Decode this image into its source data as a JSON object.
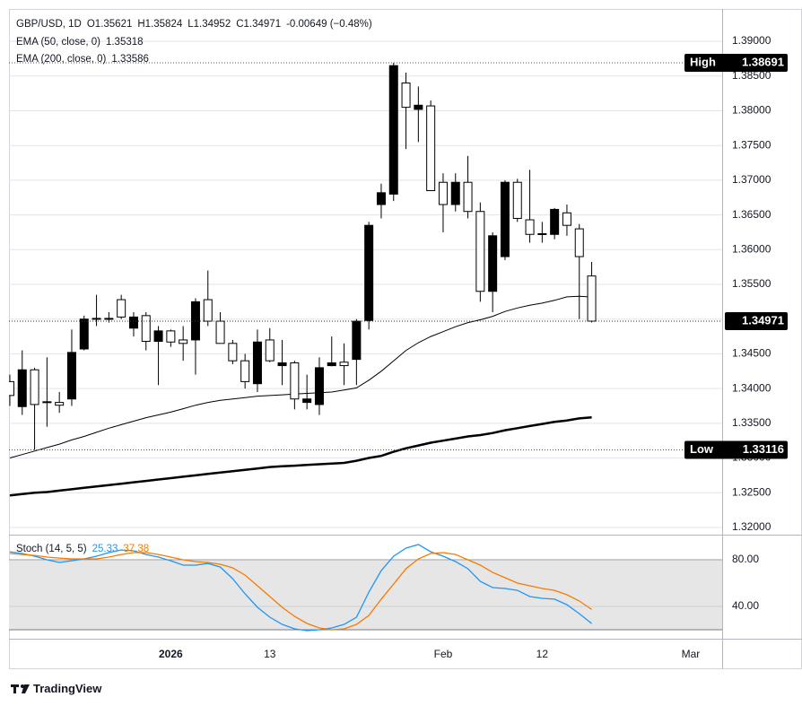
{
  "chart_data": [
    {
      "type": "candlestick",
      "title": "GBP/USD, 1D",
      "ohlc_labels": [
        "O1.35621",
        "H1.35824",
        "L1.34952",
        "C1.34971",
        "-0.00649 (−0.48%)"
      ],
      "open": [
        1.341,
        1.3374,
        1.3427,
        1.3381,
        1.338,
        1.3385,
        1.3457,
        1.35,
        1.35,
        1.3528,
        1.3487,
        1.3505,
        1.3468,
        1.3483,
        1.347,
        1.347,
        1.3528,
        1.3497,
        1.3465,
        1.344,
        1.3407,
        1.347,
        1.3433,
        1.3437,
        1.338,
        1.3377,
        1.3433,
        1.3438,
        1.3442,
        1.3498,
        1.3665,
        1.368,
        1.384,
        1.3802,
        1.3807,
        1.3697,
        1.3665,
        1.3697,
        1.3655,
        1.354,
        1.359,
        1.3697,
        1.3643,
        1.3623,
        1.3622,
        1.3653,
        1.363,
        1.35621
      ],
      "high": [
        1.342,
        1.3455,
        1.343,
        1.3445,
        1.3395,
        1.3485,
        1.3505,
        1.3535,
        1.351,
        1.3535,
        1.351,
        1.351,
        1.349,
        1.3485,
        1.349,
        1.353,
        1.357,
        1.351,
        1.347,
        1.345,
        1.3485,
        1.3487,
        1.347,
        1.344,
        1.342,
        1.3445,
        1.3475,
        1.3465,
        1.35,
        1.364,
        1.3695,
        1.38691,
        1.3855,
        1.3835,
        1.3815,
        1.371,
        1.371,
        1.3735,
        1.3668,
        1.3625,
        1.37,
        1.3702,
        1.3715,
        1.364,
        1.366,
        1.3665,
        1.3637,
        1.35824
      ],
      "low": [
        1.3375,
        1.3362,
        1.33116,
        1.3345,
        1.3365,
        1.3375,
        1.3455,
        1.349,
        1.3495,
        1.35,
        1.3475,
        1.3455,
        1.3405,
        1.346,
        1.344,
        1.342,
        1.349,
        1.3465,
        1.3435,
        1.34,
        1.3395,
        1.3438,
        1.3405,
        1.337,
        1.337,
        1.3362,
        1.3432,
        1.3405,
        1.3405,
        1.3485,
        1.3645,
        1.367,
        1.3745,
        1.3755,
        1.3685,
        1.3625,
        1.3655,
        1.3645,
        1.3525,
        1.351,
        1.3585,
        1.364,
        1.361,
        1.361,
        1.3615,
        1.362,
        1.35,
        1.34952
      ],
      "close": [
        1.339,
        1.3427,
        1.3377,
        1.338,
        1.3376,
        1.3452,
        1.35,
        1.3501,
        1.3501,
        1.3503,
        1.3503,
        1.3468,
        1.3483,
        1.3467,
        1.3465,
        1.3525,
        1.3497,
        1.3465,
        1.344,
        1.341,
        1.3467,
        1.344,
        1.3437,
        1.3385,
        1.3385,
        1.343,
        1.3437,
        1.3433,
        1.3497,
        1.3635,
        1.3682,
        1.3865,
        1.3805,
        1.3808,
        1.3685,
        1.3665,
        1.3697,
        1.3655,
        1.354,
        1.362,
        1.3697,
        1.3645,
        1.3622,
        1.3622,
        1.3658,
        1.3635,
        1.359,
        1.34971
      ],
      "up_color": "#000000",
      "down_color": "#ffffff",
      "series": [
        {
          "name": "EMA (50, close, 0)",
          "value_label": "1.35318",
          "color": "#000000",
          "values": [
            1.33,
            1.3305,
            1.331,
            1.3315,
            1.332,
            1.3326,
            1.3331,
            1.3337,
            1.3343,
            1.3348,
            1.3353,
            1.3358,
            1.3362,
            1.3366,
            1.3371,
            1.3376,
            1.338,
            1.3383,
            1.3385,
            1.3387,
            1.3389,
            1.339,
            1.3391,
            1.3392,
            1.3393,
            1.3394,
            1.3395,
            1.3398,
            1.3401,
            1.3412,
            1.3425,
            1.344,
            1.3455,
            1.3466,
            1.3475,
            1.3482,
            1.3489,
            1.3495,
            1.3499,
            1.3504,
            1.3511,
            1.3516,
            1.352,
            1.3523,
            1.3527,
            1.3532,
            1.3533,
            1.35318
          ]
        },
        {
          "name": "EMA (200, close, 0)",
          "value_label": "1.33586",
          "color": "#000000",
          "values": [
            1.3246,
            1.3248,
            1.325,
            1.3251,
            1.3253,
            1.3255,
            1.3257,
            1.3259,
            1.3261,
            1.3263,
            1.3265,
            1.3267,
            1.3269,
            1.3271,
            1.3273,
            1.3275,
            1.3277,
            1.3279,
            1.3281,
            1.3283,
            1.3285,
            1.3287,
            1.3288,
            1.3289,
            1.329,
            1.3291,
            1.3292,
            1.3293,
            1.3296,
            1.33,
            1.3303,
            1.3309,
            1.3314,
            1.3318,
            1.3322,
            1.3325,
            1.3328,
            1.3331,
            1.3333,
            1.3336,
            1.334,
            1.3343,
            1.3346,
            1.3349,
            1.3352,
            1.3354,
            1.3357,
            1.33586
          ]
        }
      ],
      "markers": [
        {
          "label": "High",
          "value": 1.38691,
          "value_label": "1.38691"
        },
        {
          "label": "Low",
          "value": 1.33116,
          "value_label": "1.33116"
        }
      ],
      "last_price_label": "1.34971",
      "ylim": [
        1.31896,
        1.39466
      ],
      "yticks": [
        {
          "value": 1.32,
          "label": "1.32000"
        },
        {
          "value": 1.325,
          "label": "1.32500"
        },
        {
          "value": 1.33,
          "label": "1.33000"
        },
        {
          "value": 1.335,
          "label": "1.33500"
        },
        {
          "value": 1.34,
          "label": "1.34000"
        },
        {
          "value": 1.345,
          "label": "1.34500"
        },
        {
          "value": 1.35,
          "label": "1.35000"
        },
        {
          "value": 1.355,
          "label": "1.35500"
        },
        {
          "value": 1.36,
          "label": "1.36000"
        },
        {
          "value": 1.365,
          "label": "1.36500"
        },
        {
          "value": 1.37,
          "label": "1.37000"
        },
        {
          "value": 1.375,
          "label": "1.37500"
        },
        {
          "value": 1.38,
          "label": "1.38000"
        },
        {
          "value": 1.385,
          "label": "1.38500"
        },
        {
          "value": 1.39,
          "label": "1.39000"
        }
      ],
      "xlim": [
        -0.07,
        57.54
      ],
      "xticks": [
        {
          "value": 13,
          "label": "2026"
        },
        {
          "value": 21,
          "label": "13"
        },
        {
          "value": 35,
          "label": "Feb"
        },
        {
          "value": 43,
          "label": "12"
        },
        {
          "value": 55,
          "label": "Mar"
        }
      ],
      "grid": true
    },
    {
      "type": "line",
      "title": "Stoch (14, 5, 5)",
      "series": [
        {
          "value_label": "25.33",
          "color": "#2196f3",
          "values": [
            86.9,
            85.4,
            83.1,
            80.0,
            77.7,
            79.2,
            80.8,
            83.1,
            86.2,
            88.5,
            87.7,
            84.6,
            82.3,
            79.2,
            75.4,
            75.4,
            76.9,
            73.8,
            63.8,
            50.8,
            39.2,
            30.8,
            24.6,
            20.8,
            19.2,
            20.0,
            21.5,
            24.6,
            30.8,
            52.3,
            70.8,
            83.1,
            90.0,
            93.1,
            86.9,
            83.1,
            78.5,
            72.3,
            61.5,
            56.2,
            55.4,
            53.8,
            48.5,
            46.9,
            46.2,
            41.5,
            33.8,
            25.33
          ]
        },
        {
          "value_label": "37.38",
          "color": "#f57c00",
          "values": [
            85.4,
            84.6,
            83.8,
            82.3,
            81.5,
            80.8,
            80.8,
            80.8,
            82.3,
            84.6,
            86.2,
            86.2,
            84.6,
            82.3,
            80.0,
            78.5,
            77.7,
            76.2,
            73.1,
            66.9,
            57.7,
            48.5,
            39.2,
            31.5,
            25.4,
            21.5,
            20.0,
            20.8,
            24.6,
            32.3,
            46.2,
            59.2,
            72.3,
            80.8,
            85.4,
            86.2,
            84.6,
            80.0,
            75.4,
            69.2,
            64.6,
            60.0,
            57.7,
            55.4,
            53.8,
            50.0,
            44.6,
            37.38
          ]
        }
      ],
      "band": [
        20,
        80
      ],
      "ylim": [
        12.3,
        100.8
      ],
      "yticks": [
        {
          "value": 80,
          "label": "80.00"
        },
        {
          "value": 40,
          "label": "40.00"
        }
      ],
      "xlim": [
        -0.07,
        57.54
      ]
    }
  ],
  "footer": "TradingView"
}
